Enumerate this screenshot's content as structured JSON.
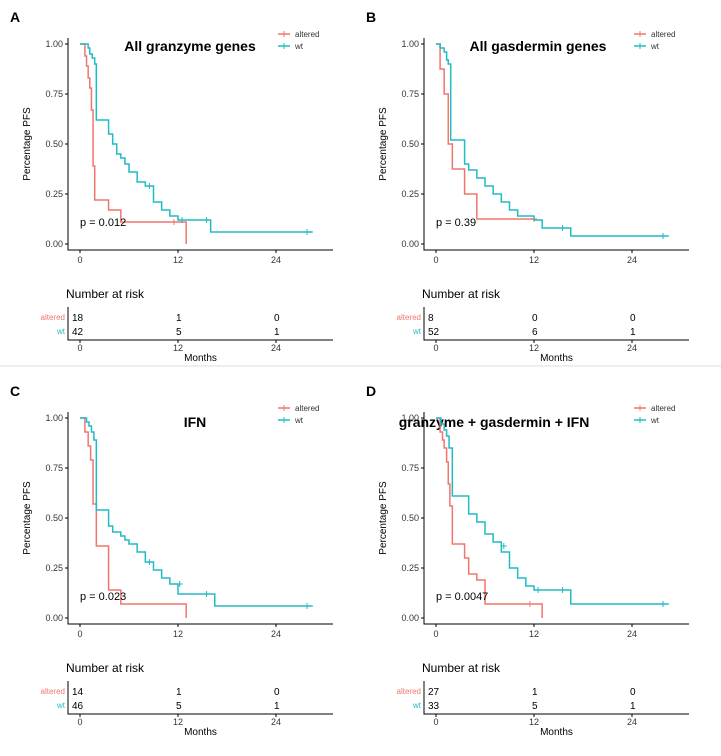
{
  "colors": {
    "altered": "#f0766c",
    "wt": "#20bcc4"
  },
  "chart_data": [
    {
      "type": "line",
      "panel": "A",
      "title": "All granzyme genes",
      "xlabel": "Months",
      "ylabel": "Percentage PFS",
      "xlim": [
        0,
        30
      ],
      "ylim": [
        0,
        1
      ],
      "xticks": [
        0,
        12,
        24
      ],
      "yticks": [
        "0.00",
        "0.25",
        "0.50",
        "0.75",
        "1.00"
      ],
      "pvalue": "p = 0.012",
      "legend_position": "top-right",
      "series": [
        {
          "name": "altered",
          "color": "#f0766c",
          "x": [
            0,
            0.6,
            0.8,
            1.0,
            1.2,
            1.4,
            1.6,
            1.8,
            2.0,
            3.5,
            5.0,
            12.0,
            13.0
          ],
          "y": [
            1.0,
            0.94,
            0.89,
            0.83,
            0.78,
            0.67,
            0.39,
            0.22,
            0.22,
            0.17,
            0.11,
            0.11,
            0.0
          ],
          "censored": [
            [
              11.5,
              0.11
            ]
          ]
        },
        {
          "name": "wt",
          "color": "#20bcc4",
          "x": [
            0,
            1.0,
            1.2,
            1.5,
            1.8,
            2.0,
            3.0,
            3.5,
            4.0,
            4.5,
            5.0,
            5.5,
            6.0,
            7.0,
            8.0,
            9.0,
            10.0,
            11.0,
            12.0,
            16.0,
            28.5
          ],
          "y": [
            1.0,
            0.98,
            0.95,
            0.93,
            0.9,
            0.62,
            0.62,
            0.55,
            0.5,
            0.45,
            0.43,
            0.4,
            0.36,
            0.31,
            0.29,
            0.21,
            0.17,
            0.14,
            0.12,
            0.06,
            0.06
          ],
          "censored": [
            [
              8.5,
              0.29
            ],
            [
              12.5,
              0.12
            ],
            [
              15.5,
              0.12
            ],
            [
              27.8,
              0.06
            ]
          ]
        }
      ],
      "risk_table": {
        "title": "Number at risk",
        "groups": [
          "altered",
          "wt"
        ],
        "times": [
          0,
          12,
          24
        ],
        "counts": {
          "altered": [
            "18",
            "1",
            "0"
          ],
          "wt": [
            "42",
            "5",
            "1"
          ]
        },
        "xticks": [
          0,
          12,
          24
        ],
        "xlabel": "Months"
      }
    },
    {
      "type": "line",
      "panel": "B",
      "title": "All gasdermin genes",
      "xlabel": "Months",
      "ylabel": "Percentage PFS",
      "xlim": [
        0,
        30
      ],
      "ylim": [
        0,
        1
      ],
      "xticks": [
        0,
        12,
        24
      ],
      "yticks": [
        "0.00",
        "0.25",
        "0.50",
        "0.75",
        "1.00"
      ],
      "pvalue": "p = 0.39",
      "legend_position": "top-right",
      "series": [
        {
          "name": "altered",
          "color": "#f0766c",
          "x": [
            0,
            0.5,
            1.0,
            1.5,
            2.0,
            3.5,
            5.0,
            12.0
          ],
          "y": [
            1.0,
            0.875,
            0.75,
            0.5,
            0.375,
            0.25,
            0.125,
            0.125
          ],
          "censored": [
            [
              12.0,
              0.125
            ]
          ]
        },
        {
          "name": "wt",
          "color": "#20bcc4",
          "x": [
            0,
            0.5,
            1.0,
            1.3,
            1.5,
            1.8,
            3.5,
            4.0,
            5.0,
            6.0,
            7.0,
            8.0,
            9.0,
            10.0,
            12.0,
            13.0,
            16.5,
            28.5
          ],
          "y": [
            1.0,
            0.98,
            0.96,
            0.92,
            0.9,
            0.52,
            0.4,
            0.37,
            0.33,
            0.29,
            0.25,
            0.21,
            0.17,
            0.14,
            0.12,
            0.08,
            0.04,
            0.04
          ],
          "censored": [
            [
              15.5,
              0.08
            ],
            [
              27.8,
              0.04
            ]
          ]
        }
      ],
      "risk_table": {
        "title": "Number at risk",
        "groups": [
          "altered",
          "wt"
        ],
        "times": [
          0,
          12,
          24
        ],
        "counts": {
          "altered": [
            "8",
            "0",
            "0"
          ],
          "wt": [
            "52",
            "6",
            "1"
          ]
        },
        "xticks": [
          0,
          12,
          24
        ],
        "xlabel": "Months"
      }
    },
    {
      "type": "line",
      "panel": "C",
      "title": "IFN",
      "xlabel": "Months",
      "ylabel": "Percentage PFS",
      "xlim": [
        0,
        30
      ],
      "ylim": [
        0,
        1
      ],
      "xticks": [
        0,
        12,
        24
      ],
      "yticks": [
        "0.00",
        "0.25",
        "0.50",
        "0.75",
        "1.00"
      ],
      "pvalue": "p = 0.023",
      "legend_position": "top-right",
      "series": [
        {
          "name": "altered",
          "color": "#f0766c",
          "x": [
            0,
            0.6,
            1.0,
            1.3,
            1.6,
            2.0,
            3.5,
            5.0,
            13.0
          ],
          "y": [
            1.0,
            0.93,
            0.86,
            0.79,
            0.57,
            0.36,
            0.14,
            0.07,
            0.0
          ],
          "censored": []
        },
        {
          "name": "wt",
          "color": "#20bcc4",
          "x": [
            0,
            0.8,
            1.1,
            1.4,
            1.7,
            2.0,
            3.5,
            4.0,
            5.0,
            5.5,
            6.0,
            7.0,
            8.0,
            9.0,
            10.0,
            11.0,
            12.0,
            16.5,
            28.5
          ],
          "y": [
            1.0,
            0.98,
            0.96,
            0.93,
            0.89,
            0.54,
            0.46,
            0.43,
            0.41,
            0.39,
            0.37,
            0.33,
            0.28,
            0.24,
            0.2,
            0.17,
            0.12,
            0.06,
            0.06
          ],
          "censored": [
            [
              8.5,
              0.28
            ],
            [
              12.2,
              0.17
            ],
            [
              15.5,
              0.12
            ],
            [
              27.8,
              0.06
            ]
          ]
        }
      ],
      "risk_table": {
        "title": "Number at risk",
        "groups": [
          "altered",
          "wt"
        ],
        "times": [
          0,
          12,
          24
        ],
        "counts": {
          "altered": [
            "14",
            "1",
            "0"
          ],
          "wt": [
            "46",
            "5",
            "1"
          ]
        },
        "xticks": [
          0,
          12,
          24
        ],
        "xlabel": "Months"
      }
    },
    {
      "type": "line",
      "panel": "D",
      "title": "granzyme + gasdermin + IFN",
      "xlabel": "Months",
      "ylabel": "Percentage PFS",
      "xlim": [
        0,
        30
      ],
      "ylim": [
        0,
        1
      ],
      "xticks": [
        0,
        12,
        24
      ],
      "yticks": [
        "0.00",
        "0.25",
        "0.50",
        "0.75",
        "1.00"
      ],
      "pvalue": "p = 0.0047",
      "legend_position": "top-right",
      "series": [
        {
          "name": "altered",
          "color": "#f0766c",
          "x": [
            0,
            0.5,
            0.8,
            1.0,
            1.3,
            1.5,
            1.7,
            2.0,
            3.5,
            4.0,
            5.0,
            6.0,
            12.0,
            13.0
          ],
          "y": [
            1.0,
            0.93,
            0.89,
            0.85,
            0.78,
            0.67,
            0.56,
            0.37,
            0.3,
            0.22,
            0.19,
            0.07,
            0.07,
            0.0
          ],
          "censored": [
            [
              11.5,
              0.07
            ]
          ]
        },
        {
          "name": "wt",
          "color": "#20bcc4",
          "x": [
            0,
            0.6,
            1.0,
            1.3,
            1.6,
            2.0,
            4.0,
            5.0,
            6.0,
            7.0,
            8.0,
            9.0,
            10.0,
            11.0,
            12.0,
            16.5,
            28.5
          ],
          "y": [
            1.0,
            0.97,
            0.94,
            0.91,
            0.85,
            0.61,
            0.52,
            0.48,
            0.42,
            0.38,
            0.33,
            0.25,
            0.2,
            0.16,
            0.14,
            0.07,
            0.07
          ],
          "censored": [
            [
              8.3,
              0.36
            ],
            [
              12.5,
              0.14
            ],
            [
              15.5,
              0.14
            ],
            [
              27.8,
              0.07
            ]
          ]
        }
      ],
      "risk_table": {
        "title": "Number at risk",
        "groups": [
          "altered",
          "wt"
        ],
        "times": [
          0,
          12,
          24
        ],
        "counts": {
          "altered": [
            "27",
            "1",
            "0"
          ],
          "wt": [
            "33",
            "5",
            "1"
          ]
        },
        "xticks": [
          0,
          12,
          24
        ],
        "xlabel": "Months"
      }
    }
  ]
}
